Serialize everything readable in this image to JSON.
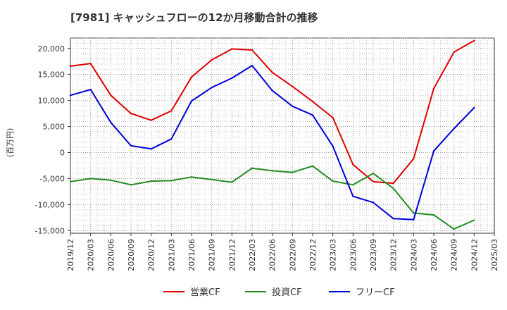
{
  "chart_data": {
    "type": "line",
    "title": "[7981]  キャッシュフローの12か月移動合計の推移",
    "xlabel": "",
    "ylabel": "(百万円)",
    "ylim": [
      -15500,
      22000
    ],
    "yticks": [
      -15000,
      -10000,
      -5000,
      0,
      5000,
      10000,
      15000,
      20000
    ],
    "ytick_labels": [
      "-15,000",
      "-10,000",
      "-5,000",
      "0",
      "5,000",
      "10,000",
      "15,000",
      "20,000"
    ],
    "categories": [
      "2019/12",
      "2020/03",
      "2020/06",
      "2020/09",
      "2020/12",
      "2021/03",
      "2021/06",
      "2021/09",
      "2021/12",
      "2022/03",
      "2022/06",
      "2022/09",
      "2022/12",
      "2023/03",
      "2023/06",
      "2023/09",
      "2023/12",
      "2024/03",
      "2024/06",
      "2024/09",
      "2024/12",
      "2025/03"
    ],
    "grid": true,
    "legend_position": "bottom",
    "series": [
      {
        "name": "営業CF",
        "color": "#e00000",
        "values": [
          16600,
          17100,
          11000,
          7500,
          6200,
          8000,
          14500,
          17800,
          19900,
          19700,
          15400,
          12700,
          9800,
          6700,
          -2300,
          -5600,
          -5900,
          -1200,
          12300,
          19300,
          21500,
          null
        ]
      },
      {
        "name": "投資CF",
        "color": "#228b22",
        "values": [
          -5600,
          -5000,
          -5300,
          -6200,
          -5500,
          -5400,
          -4700,
          -5200,
          -5700,
          -3000,
          -3500,
          -3800,
          -2600,
          -5500,
          -6200,
          -4000,
          -6900,
          -11600,
          -12000,
          -14700,
          -13000,
          null
        ]
      },
      {
        "name": "フリーCF",
        "color": "#0000dd",
        "values": [
          11000,
          12100,
          5800,
          1300,
          700,
          2600,
          9900,
          12500,
          14300,
          16700,
          11900,
          8900,
          7200,
          1200,
          -8400,
          -9600,
          -12700,
          -12900,
          300,
          4600,
          8600,
          null
        ]
      }
    ]
  }
}
